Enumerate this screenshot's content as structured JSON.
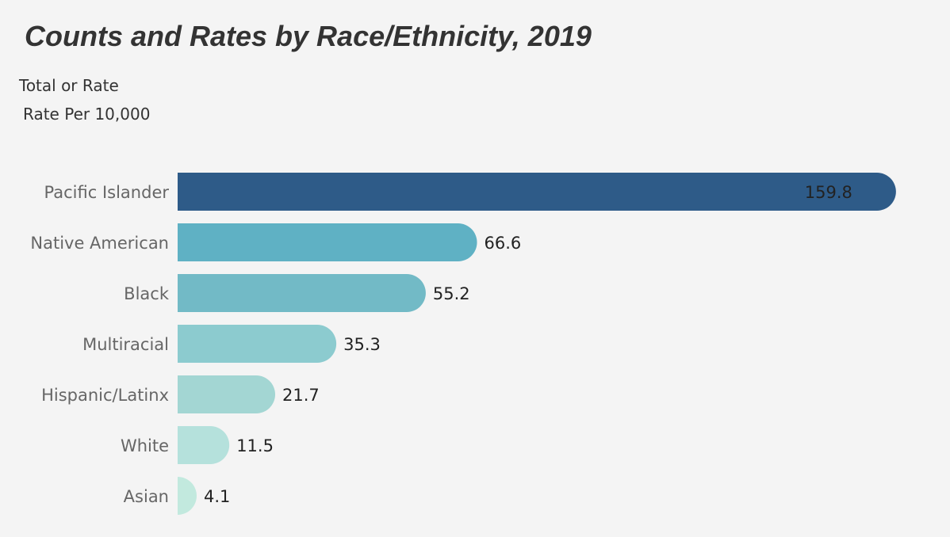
{
  "header": {
    "title": "Counts and Rates by Race/Ethnicity, 2019"
  },
  "filter": {
    "label": "Total or Rate",
    "value": "Rate Per 10,000"
  },
  "chart_data": {
    "type": "bar",
    "orientation": "horizontal",
    "title": "Counts and Rates by Race/Ethnicity, 2019",
    "xlabel": "",
    "ylabel": "",
    "xlim": [
      0,
      160
    ],
    "grid": false,
    "categories": [
      "Pacific Islander",
      "Native American",
      "Black",
      "Multiracial",
      "Hispanic/Latinx",
      "White",
      "Asian"
    ],
    "values": [
      159.8,
      66.6,
      55.2,
      35.3,
      21.7,
      11.5,
      4.1
    ],
    "value_labels": [
      "159.8",
      "66.6",
      "55.2",
      "35.3",
      "21.7",
      "11.5",
      "4.1"
    ],
    "colors": [
      "#2e5b88",
      "#5fb1c4",
      "#72bac6",
      "#8ccbcf",
      "#a3d6d3",
      "#b5e1dc",
      "#c2e9de"
    ]
  }
}
